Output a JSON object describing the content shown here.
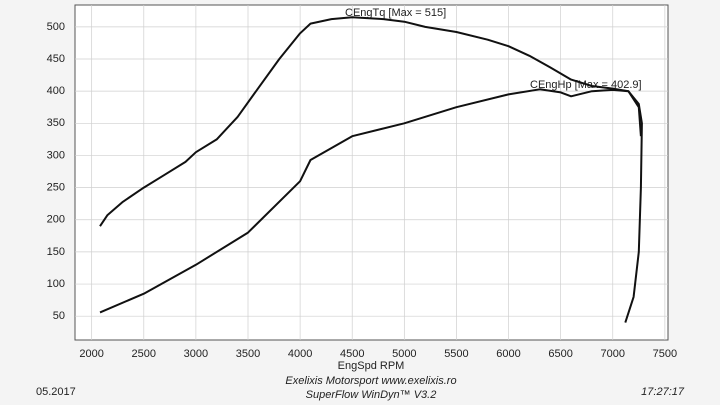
{
  "chart_data": {
    "type": "line",
    "x_label": "EngSpd RPM",
    "annotations": [
      "CEngTq [Max = 515]",
      "CEngHp [Max = 402.9]"
    ],
    "footer": {
      "credit": "Exelixis Motorsport www.exelixis.ro",
      "software": "SuperFlow WinDyn™ V3.2",
      "date": "05.2017",
      "time": "17:27:17"
    },
    "series": [
      {
        "name": "CEngTq",
        "color": "#111111",
        "x": [
          2080,
          2150,
          2300,
          2500,
          2700,
          2900,
          3000,
          3200,
          3400,
          3600,
          3800,
          4000,
          4100,
          4300,
          4500,
          4800,
          5000,
          5200,
          5500,
          5800,
          6000,
          6200,
          6400,
          6600,
          6800,
          7000,
          7150,
          7250,
          7280,
          7270,
          7250,
          7200,
          7120
        ],
        "values": [
          190,
          207,
          228,
          250,
          270,
          290,
          305,
          325,
          360,
          405,
          450,
          490,
          505,
          512,
          515,
          512,
          508,
          500,
          492,
          480,
          470,
          455,
          437,
          418,
          408,
          404,
          400,
          380,
          350,
          250,
          150,
          80,
          40
        ]
      },
      {
        "name": "CEngHp",
        "color": "#111111",
        "x": [
          2080,
          2500,
          3000,
          3500,
          4000,
          4100,
          4500,
          5000,
          5500,
          6000,
          6300,
          6500,
          6600,
          6800,
          7000,
          7150,
          7250,
          7270
        ],
        "values": [
          56,
          85,
          130,
          180,
          260,
          293,
          330,
          350,
          375,
          395,
          402.9,
          398,
          392,
          400,
          402,
          400,
          375,
          330
        ]
      }
    ],
    "xlim": [
      1840,
      7530
    ],
    "ylim": [
      13,
      534
    ],
    "xticks": [
      2000,
      2500,
      3000,
      3500,
      4000,
      4500,
      5000,
      5500,
      6000,
      6500,
      7000,
      7500
    ],
    "yticks": [
      50,
      100,
      150,
      200,
      250,
      300,
      350,
      400,
      450,
      500
    ],
    "grid": true
  }
}
